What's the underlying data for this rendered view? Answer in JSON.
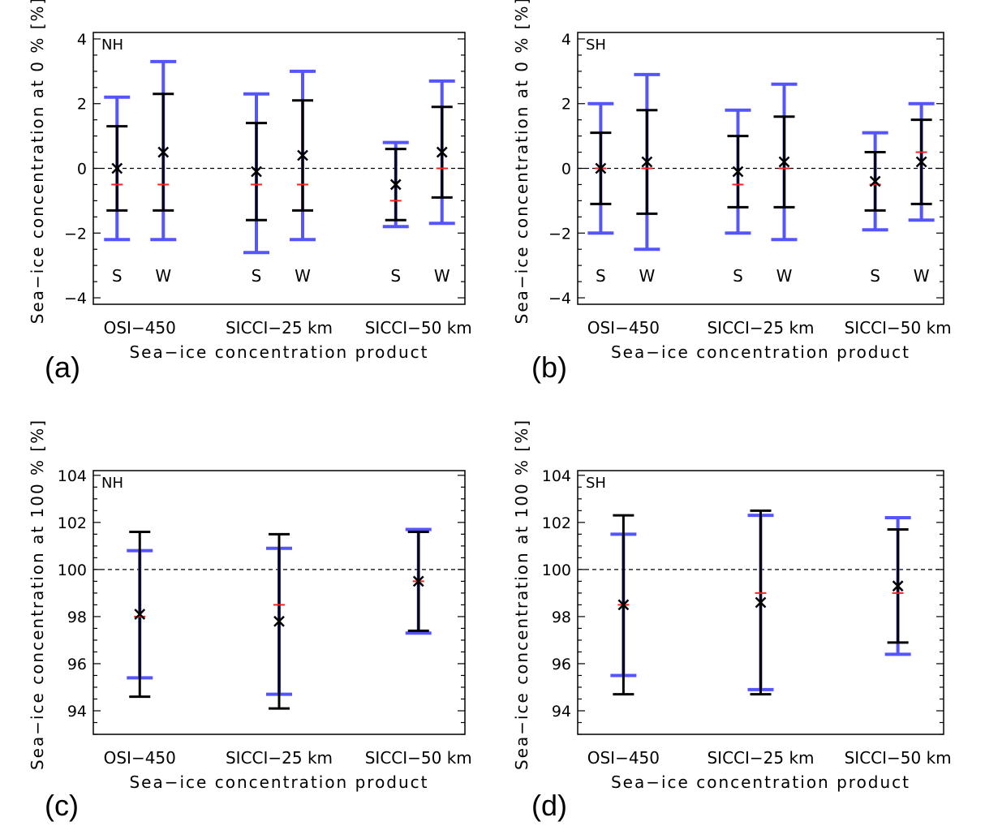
{
  "colors": {
    "outer_bar": "#5555ff",
    "inner_bar": "#000000",
    "median": "#ff2020",
    "mean_marker": "#000000",
    "reference_line": "#000000"
  },
  "chart_data": [
    {
      "type": "errorbar",
      "panel": "(a)",
      "region": "NH",
      "ylabel": "Sea−ice concentration at 0 % [%]",
      "xlabel": "Sea−ice concentration product",
      "ylim": [
        -4.2,
        4.2
      ],
      "yticks": [
        -4,
        -2,
        0,
        2,
        4
      ],
      "ytick_labels": [
        "−4",
        "−2",
        "0",
        "2",
        "4"
      ],
      "reference_line": 0,
      "categories": [
        "OSI−450",
        "SICCI−25 km",
        "SICCI−50 km"
      ],
      "seasons": [
        "S",
        "W"
      ],
      "points": [
        {
          "category": "OSI−450",
          "season": "S",
          "blue": [
            -2.2,
            2.2
          ],
          "black": [
            -1.3,
            1.3
          ],
          "cross": 0.0,
          "red": -0.5
        },
        {
          "category": "OSI−450",
          "season": "W",
          "blue": [
            -2.2,
            3.3
          ],
          "black": [
            -1.3,
            2.3
          ],
          "cross": 0.5,
          "red": -0.5
        },
        {
          "category": "SICCI−25 km",
          "season": "S",
          "blue": [
            -2.6,
            2.3
          ],
          "black": [
            -1.6,
            1.4
          ],
          "cross": -0.1,
          "red": -0.5
        },
        {
          "category": "SICCI−25 km",
          "season": "W",
          "blue": [
            -2.2,
            3.0
          ],
          "black": [
            -1.3,
            2.1
          ],
          "cross": 0.4,
          "red": -0.5
        },
        {
          "category": "SICCI−50 km",
          "season": "S",
          "blue": [
            -1.8,
            0.8
          ],
          "black": [
            -1.6,
            0.6
          ],
          "cross": -0.5,
          "red": -1.0
        },
        {
          "category": "SICCI−50 km",
          "season": "W",
          "blue": [
            -1.7,
            2.7
          ],
          "black": [
            -0.9,
            1.9
          ],
          "cross": 0.5,
          "red": 0.0
        }
      ]
    },
    {
      "type": "errorbar",
      "panel": "(b)",
      "region": "SH",
      "ylabel": "Sea−ice concentration at 0 % [%]",
      "xlabel": "Sea−ice concentration product",
      "ylim": [
        -4.2,
        4.2
      ],
      "yticks": [
        -4,
        -2,
        0,
        2,
        4
      ],
      "ytick_labels": [
        "−4",
        "−2",
        "0",
        "2",
        "4"
      ],
      "reference_line": 0,
      "categories": [
        "OSI−450",
        "SICCI−25 km",
        "SICCI−50 km"
      ],
      "seasons": [
        "S",
        "W"
      ],
      "points": [
        {
          "category": "OSI−450",
          "season": "S",
          "blue": [
            -2.0,
            2.0
          ],
          "black": [
            -1.1,
            1.1
          ],
          "cross": 0.0,
          "red": 0.0
        },
        {
          "category": "OSI−450",
          "season": "W",
          "blue": [
            -2.5,
            2.9
          ],
          "black": [
            -1.4,
            1.8
          ],
          "cross": 0.2,
          "red": 0.0
        },
        {
          "category": "SICCI−25 km",
          "season": "S",
          "blue": [
            -2.0,
            1.8
          ],
          "black": [
            -1.2,
            1.0
          ],
          "cross": -0.1,
          "red": -0.5
        },
        {
          "category": "SICCI−25 km",
          "season": "W",
          "blue": [
            -2.2,
            2.6
          ],
          "black": [
            -1.2,
            1.6
          ],
          "cross": 0.2,
          "red": 0.0
        },
        {
          "category": "SICCI−50 km",
          "season": "S",
          "blue": [
            -1.9,
            1.1
          ],
          "black": [
            -1.3,
            0.5
          ],
          "cross": -0.4,
          "red": -0.5
        },
        {
          "category": "SICCI−50 km",
          "season": "W",
          "blue": [
            -1.6,
            2.0
          ],
          "black": [
            -1.1,
            1.5
          ],
          "cross": 0.2,
          "red": 0.5
        }
      ]
    },
    {
      "type": "errorbar",
      "panel": "(c)",
      "region": "NH",
      "ylabel": "Sea−ice concentration at 100 % [%]",
      "xlabel": "Sea−ice concentration product",
      "ylim": [
        93.0,
        104.2
      ],
      "yticks": [
        94,
        96,
        98,
        100,
        102,
        104
      ],
      "ytick_labels": [
        "94",
        "96",
        "98",
        "100",
        "102",
        "104"
      ],
      "reference_line": 100,
      "categories": [
        "OSI−450",
        "SICCI−25 km",
        "SICCI−50 km"
      ],
      "seasons": [],
      "points": [
        {
          "category": "OSI−450",
          "season": "",
          "blue": [
            95.4,
            100.8
          ],
          "black": [
            94.6,
            101.6
          ],
          "cross": 98.1,
          "red": 98.0
        },
        {
          "category": "SICCI−25 km",
          "season": "",
          "blue": [
            94.7,
            100.9
          ],
          "black": [
            94.1,
            101.5
          ],
          "cross": 97.8,
          "red": 98.5
        },
        {
          "category": "SICCI−50 km",
          "season": "",
          "blue": [
            97.3,
            101.7
          ],
          "black": [
            97.4,
            101.6
          ],
          "cross": 99.5,
          "red": 99.5
        }
      ]
    },
    {
      "type": "errorbar",
      "panel": "(d)",
      "region": "SH",
      "ylabel": "Sea−ice concentration at 100 % [%]",
      "xlabel": "Sea−ice concentration product",
      "ylim": [
        93.0,
        104.2
      ],
      "yticks": [
        94,
        96,
        98,
        100,
        102,
        104
      ],
      "ytick_labels": [
        "94",
        "96",
        "98",
        "100",
        "102",
        "104"
      ],
      "reference_line": 100,
      "categories": [
        "OSI−450",
        "SICCI−25 km",
        "SICCI−50 km"
      ],
      "seasons": [],
      "points": [
        {
          "category": "OSI−450",
          "season": "",
          "blue": [
            95.5,
            101.5
          ],
          "black": [
            94.7,
            102.3
          ],
          "cross": 98.5,
          "red": 98.5
        },
        {
          "category": "SICCI−25 km",
          "season": "",
          "blue": [
            94.9,
            102.3
          ],
          "black": [
            94.7,
            102.5
          ],
          "cross": 98.6,
          "red": 99.0
        },
        {
          "category": "SICCI−50 km",
          "season": "",
          "blue": [
            96.4,
            102.2
          ],
          "black": [
            96.9,
            101.7
          ],
          "cross": 99.3,
          "red": 99.0
        }
      ]
    }
  ]
}
